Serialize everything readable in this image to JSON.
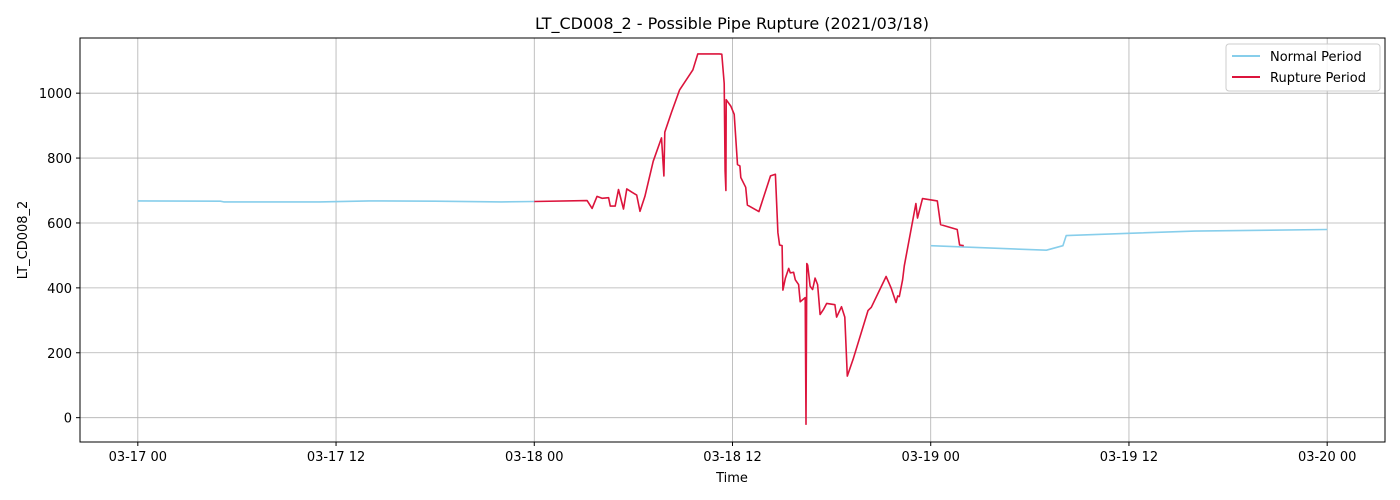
{
  "chart_data": {
    "type": "line",
    "title": "LT_CD008_2 - Possible Pipe Rupture (2021/03/18)",
    "xlabel": "Time",
    "ylabel": "LT_CD008_2",
    "x_unit": "hours from 03-17 00:00",
    "xlim": [
      -3.5,
      75.5
    ],
    "ylim": [
      -75,
      1170
    ],
    "xticks": [
      {
        "value": 0,
        "label": "03-17 00"
      },
      {
        "value": 12,
        "label": "03-17 12"
      },
      {
        "value": 24,
        "label": "03-18 00"
      },
      {
        "value": 36,
        "label": "03-18 12"
      },
      {
        "value": 48,
        "label": "03-19 00"
      },
      {
        "value": 60,
        "label": "03-19 12"
      },
      {
        "value": 72,
        "label": "03-20 00"
      }
    ],
    "yticks": [
      0,
      200,
      400,
      600,
      800,
      1000
    ],
    "grid": true,
    "legend_position": "top-right",
    "series": [
      {
        "name": "Normal Period",
        "color": "#87ceeb",
        "segments": [
          [
            [
              0,
              668
            ],
            [
              5,
              667
            ],
            [
              5.2,
              665
            ],
            [
              11,
              665
            ],
            [
              14,
              668
            ],
            [
              18,
              667
            ],
            [
              22,
              665
            ],
            [
              24,
              666
            ]
          ],
          [
            [
              48,
              530
            ],
            [
              55,
              516
            ],
            [
              56,
              530
            ],
            [
              56.2,
              561
            ],
            [
              60,
              568
            ],
            [
              64,
              575
            ],
            [
              72,
              580
            ]
          ]
        ]
      },
      {
        "name": "Rupture Period",
        "color": "#dc143c",
        "segments": [
          [
            [
              24,
              666
            ],
            [
              27.2,
              669
            ],
            [
              27.5,
              645
            ],
            [
              27.8,
              682
            ],
            [
              28.1,
              676
            ],
            [
              28.5,
              678
            ],
            [
              28.6,
              652
            ],
            [
              28.9,
              652
            ],
            [
              29.1,
              703
            ],
            [
              29.4,
              643
            ],
            [
              29.6,
              705
            ],
            [
              29.9,
              695
            ],
            [
              30.2,
              686
            ],
            [
              30.4,
              636
            ],
            [
              30.7,
              682
            ],
            [
              31.2,
              790
            ],
            [
              31.7,
              862
            ],
            [
              31.85,
              745
            ],
            [
              31.9,
              880
            ],
            [
              32.3,
              940
            ],
            [
              32.8,
              1010
            ],
            [
              33.6,
              1072
            ],
            [
              33.9,
              1121
            ],
            [
              35.2,
              1121
            ],
            [
              35.35,
              1120
            ],
            [
              35.5,
              1030
            ],
            [
              35.55,
              760
            ],
            [
              35.6,
              700
            ],
            [
              35.62,
              980
            ],
            [
              35.9,
              960
            ],
            [
              36.1,
              935
            ],
            [
              36.3,
              780
            ],
            [
              36.45,
              776
            ],
            [
              36.5,
              740
            ],
            [
              36.8,
              710
            ],
            [
              36.9,
              655
            ],
            [
              37.6,
              635
            ],
            [
              38.3,
              745
            ],
            [
              38.6,
              750
            ],
            [
              38.75,
              570
            ],
            [
              38.85,
              532
            ],
            [
              39.0,
              530
            ],
            [
              39.05,
              393
            ],
            [
              39.2,
              430
            ],
            [
              39.4,
              460
            ],
            [
              39.5,
              446
            ],
            [
              39.7,
              448
            ],
            [
              39.8,
              425
            ],
            [
              40.0,
              410
            ],
            [
              40.1,
              357
            ],
            [
              40.4,
              370
            ],
            [
              40.45,
              -20
            ],
            [
              40.5,
              475
            ],
            [
              40.55,
              470
            ],
            [
              40.7,
              405
            ],
            [
              40.85,
              395
            ],
            [
              41.0,
              430
            ],
            [
              41.15,
              410
            ],
            [
              41.3,
              318
            ],
            [
              41.5,
              333
            ],
            [
              41.7,
              352
            ],
            [
              42.2,
              348
            ],
            [
              42.3,
              310
            ],
            [
              42.6,
              342
            ],
            [
              42.8,
              310
            ],
            [
              42.95,
              128
            ],
            [
              43.3,
              180
            ],
            [
              44.2,
              330
            ],
            [
              44.4,
              340
            ],
            [
              45.3,
              435
            ],
            [
              45.6,
              400
            ],
            [
              45.9,
              355
            ],
            [
              46.0,
              375
            ],
            [
              46.1,
              373
            ],
            [
              46.3,
              425
            ],
            [
              46.4,
              468
            ],
            [
              47.1,
              660
            ],
            [
              47.2,
              615
            ],
            [
              47.5,
              675
            ],
            [
              48.4,
              668
            ],
            [
              48.6,
              595
            ],
            [
              49.6,
              580
            ],
            [
              49.75,
              532
            ],
            [
              50.0,
              530
            ]
          ]
        ]
      }
    ]
  }
}
